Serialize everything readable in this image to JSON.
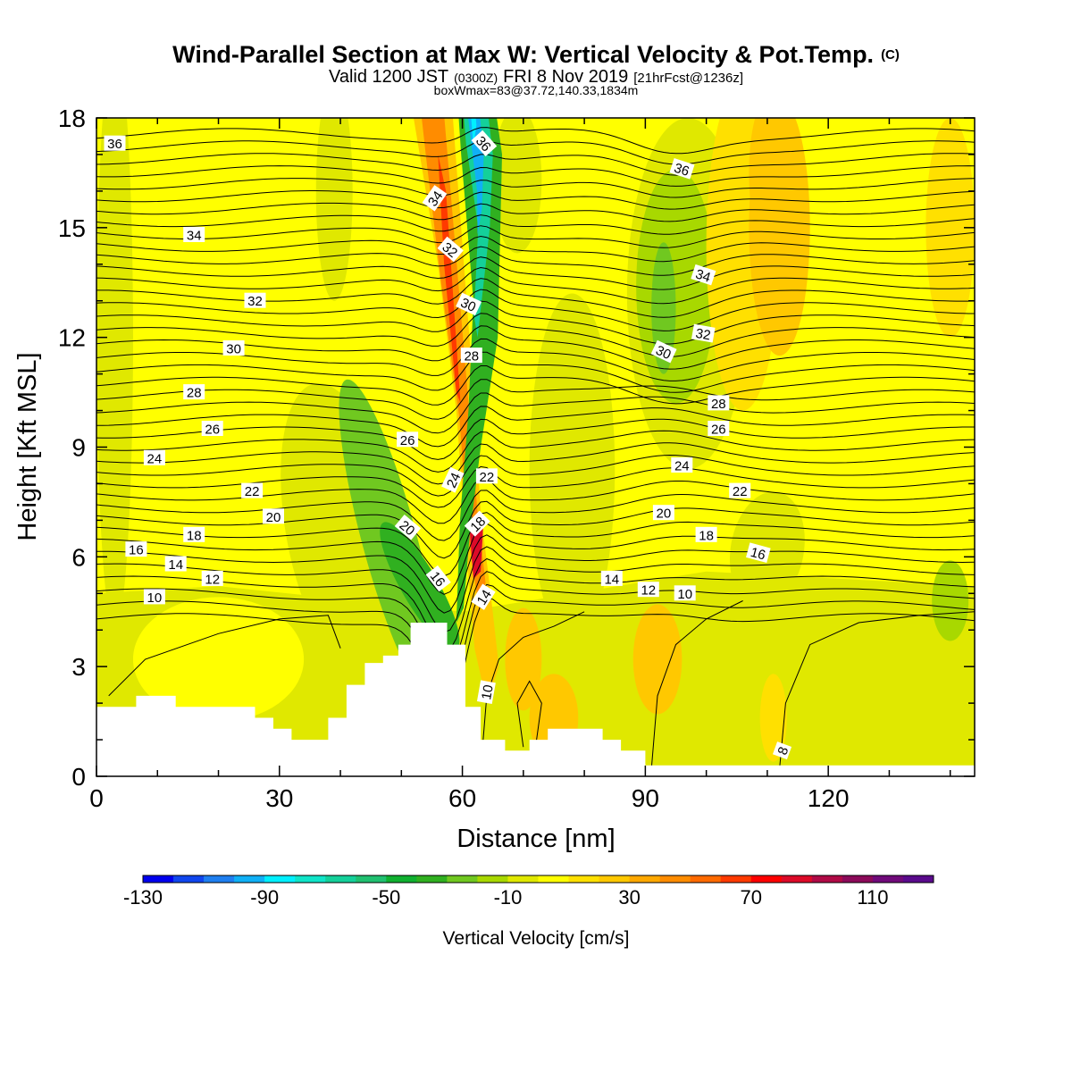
{
  "chart_data": {
    "type": "heatmap",
    "title": "Wind-Parallel Section at Max W: Vertical Velocity & Pot.Temp.",
    "title_mark": "(C)",
    "subtitle": {
      "valid": "Valid 1200 JST",
      "utc": "(0300Z)",
      "date": "FRI 8 Nov 2019",
      "fcst": "[21hrFcst@1236z]"
    },
    "box_info": "boxWmax=83@37.72,140.33,1834m",
    "xlabel": "Distance [nm]",
    "ylabel": "Height [Kft MSL]",
    "xlim": [
      0,
      144
    ],
    "ylim": [
      0,
      18
    ],
    "x_ticks": [
      0,
      30,
      60,
      90,
      120
    ],
    "y_ticks": [
      0,
      3,
      6,
      9,
      12,
      15,
      18
    ],
    "colorbar": {
      "label": "Vertical Velocity [cm/s]",
      "min": -130,
      "max": 130,
      "step": 10,
      "tick_labels": [
        -130,
        -90,
        -50,
        -10,
        30,
        70,
        110
      ],
      "colors": [
        "#0000ee",
        "#1046ee",
        "#1f7ff0",
        "#10b0f6",
        "#00f0ff",
        "#10e4c8",
        "#14d09a",
        "#20c070",
        "#10b030",
        "#30b020",
        "#70c820",
        "#a8d800",
        "#e0e800",
        "#ffff00",
        "#ffe000",
        "#ffc800",
        "#ffa800",
        "#ff8c00",
        "#ff6a00",
        "#ff3a00",
        "#ff0000",
        "#dc0a28",
        "#b00a46",
        "#8c0a5a",
        "#700a7a",
        "#5a0a8c"
      ]
    },
    "contour_labels": [
      {
        "v": "36",
        "x": 3,
        "y": 17.3,
        "r": 0
      },
      {
        "v": "36",
        "x": 63.5,
        "y": 17.3,
        "r": 48
      },
      {
        "v": "36",
        "x": 96,
        "y": 16.6,
        "r": 18
      },
      {
        "v": "34",
        "x": 16,
        "y": 14.8,
        "r": 0
      },
      {
        "v": "34",
        "x": 55.5,
        "y": 15.8,
        "r": -55
      },
      {
        "v": "34",
        "x": 99.5,
        "y": 13.7,
        "r": 18
      },
      {
        "v": "32",
        "x": 26,
        "y": 13.0,
        "r": 0
      },
      {
        "v": "32",
        "x": 58,
        "y": 14.4,
        "r": 40
      },
      {
        "v": "32",
        "x": 99.5,
        "y": 12.1,
        "r": 10
      },
      {
        "v": "30",
        "x": 22.5,
        "y": 11.7,
        "r": 0
      },
      {
        "v": "30",
        "x": 61,
        "y": 12.9,
        "r": 25
      },
      {
        "v": "30",
        "x": 93,
        "y": 11.6,
        "r": 25
      },
      {
        "v": "28",
        "x": 16,
        "y": 10.5,
        "r": 0
      },
      {
        "v": "28",
        "x": 61.5,
        "y": 11.5,
        "r": 0
      },
      {
        "v": "28",
        "x": 102,
        "y": 10.2,
        "r": 0
      },
      {
        "v": "26",
        "x": 19,
        "y": 9.5,
        "r": 0
      },
      {
        "v": "26",
        "x": 51,
        "y": 9.2,
        "r": 0
      },
      {
        "v": "26",
        "x": 102,
        "y": 9.5,
        "r": 0
      },
      {
        "v": "24",
        "x": 9.5,
        "y": 8.7,
        "r": 0
      },
      {
        "v": "24",
        "x": 58.5,
        "y": 8.1,
        "r": -65
      },
      {
        "v": "24",
        "x": 96,
        "y": 8.5,
        "r": 0
      },
      {
        "v": "22",
        "x": 25.5,
        "y": 7.8,
        "r": 0
      },
      {
        "v": "22",
        "x": 64,
        "y": 8.2,
        "r": 0
      },
      {
        "v": "22",
        "x": 105.5,
        "y": 7.8,
        "r": 0
      },
      {
        "v": "20",
        "x": 29,
        "y": 7.1,
        "r": 0
      },
      {
        "v": "20",
        "x": 51,
        "y": 6.8,
        "r": 40
      },
      {
        "v": "20",
        "x": 93,
        "y": 7.2,
        "r": 0
      },
      {
        "v": "18",
        "x": 16,
        "y": 6.6,
        "r": 0
      },
      {
        "v": "18",
        "x": 62.5,
        "y": 6.9,
        "r": -45
      },
      {
        "v": "18",
        "x": 100,
        "y": 6.6,
        "r": 0
      },
      {
        "v": "16",
        "x": 6.5,
        "y": 6.2,
        "r": 0
      },
      {
        "v": "16",
        "x": 56,
        "y": 5.4,
        "r": 52
      },
      {
        "v": "16",
        "x": 108.5,
        "y": 6.1,
        "r": 15
      },
      {
        "v": "14",
        "x": 13,
        "y": 5.8,
        "r": 0
      },
      {
        "v": "14",
        "x": 63.5,
        "y": 4.9,
        "r": -58
      },
      {
        "v": "14",
        "x": 84.5,
        "y": 5.4,
        "r": 0
      },
      {
        "v": "12",
        "x": 19,
        "y": 5.4,
        "r": 0
      },
      {
        "v": "12",
        "x": 90.5,
        "y": 5.1,
        "r": 0
      },
      {
        "v": "10",
        "x": 9.5,
        "y": 4.9,
        "r": 0
      },
      {
        "v": "10",
        "x": 64,
        "y": 2.3,
        "r": -80
      },
      {
        "v": "10",
        "x": 96.5,
        "y": 5.0,
        "r": 0
      },
      {
        "v": "8",
        "x": 112.5,
        "y": 0.7,
        "r": -70
      }
    ]
  }
}
